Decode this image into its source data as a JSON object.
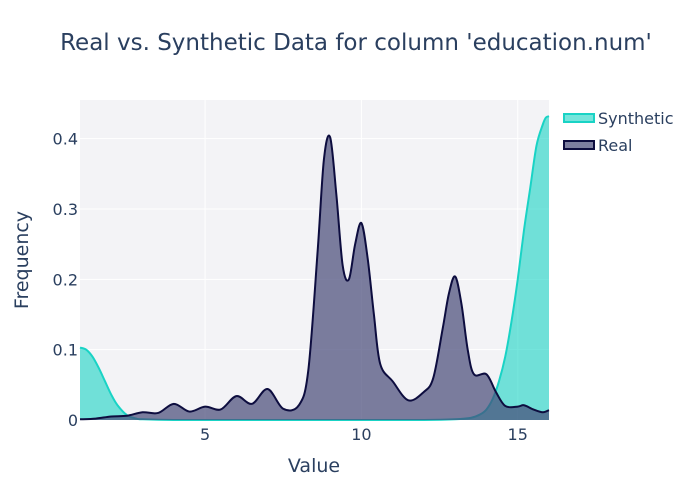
{
  "chart_data": {
    "type": "area",
    "title": "Real vs. Synthetic Data for column 'education.num'",
    "xlabel": "Value",
    "ylabel": "Frequency",
    "xlim": [
      1,
      16
    ],
    "ylim": [
      0,
      0.455
    ],
    "x_ticks": [
      5,
      10,
      15
    ],
    "x_tick_labels": [
      "5",
      "10",
      "15"
    ],
    "y_ticks": [
      0,
      0.1,
      0.2,
      0.3,
      0.4
    ],
    "y_tick_labels": [
      "0",
      "0.1",
      "0.2",
      "0.3",
      "0.4"
    ],
    "grid": true,
    "legend_position": "top-right",
    "series": [
      {
        "name": "Synthetic",
        "color": "#19d3c5",
        "fill": "rgba(25,211,197,0.6)",
        "x": [
          1,
          1.2,
          1.4,
          1.6,
          1.8,
          2.0,
          2.2,
          2.5,
          2.8,
          3.0,
          4,
          6,
          8,
          10,
          12,
          13,
          13.5,
          13.8,
          14.0,
          14.2,
          14.4,
          14.6,
          14.8,
          15.0,
          15.2,
          15.4,
          15.6,
          15.8,
          15.9,
          16
        ],
        "y": [
          0.103,
          0.1,
          0.09,
          0.074,
          0.055,
          0.036,
          0.021,
          0.007,
          0.002,
          0.001,
          0,
          0,
          0,
          0,
          0,
          0.001,
          0.003,
          0.008,
          0.015,
          0.03,
          0.055,
          0.09,
          0.14,
          0.2,
          0.27,
          0.33,
          0.39,
          0.42,
          0.43,
          0.432
        ]
      },
      {
        "name": "Real",
        "color": "#0d0d3f",
        "fill": "rgba(70,72,120,0.7)",
        "x": [
          1,
          1.5,
          2.0,
          2.5,
          3.0,
          3.5,
          4.0,
          4.5,
          5.0,
          5.5,
          6.0,
          6.5,
          7.0,
          7.5,
          8.0,
          8.3,
          8.6,
          8.8,
          9.0,
          9.2,
          9.4,
          9.6,
          9.8,
          10.0,
          10.2,
          10.4,
          10.6,
          11.0,
          11.5,
          12.0,
          12.3,
          12.6,
          12.8,
          13.0,
          13.2,
          13.4,
          13.6,
          14.0,
          14.3,
          14.6,
          15.0,
          15.2,
          15.5,
          15.8,
          16
        ],
        "y": [
          0.001,
          0.002,
          0.005,
          0.006,
          0.011,
          0.01,
          0.023,
          0.012,
          0.019,
          0.015,
          0.034,
          0.023,
          0.044,
          0.016,
          0.021,
          0.07,
          0.24,
          0.37,
          0.402,
          0.32,
          0.22,
          0.2,
          0.25,
          0.28,
          0.23,
          0.15,
          0.08,
          0.055,
          0.028,
          0.04,
          0.06,
          0.13,
          0.18,
          0.204,
          0.165,
          0.1,
          0.065,
          0.065,
          0.04,
          0.02,
          0.019,
          0.021,
          0.015,
          0.011,
          0.014
        ]
      }
    ]
  }
}
